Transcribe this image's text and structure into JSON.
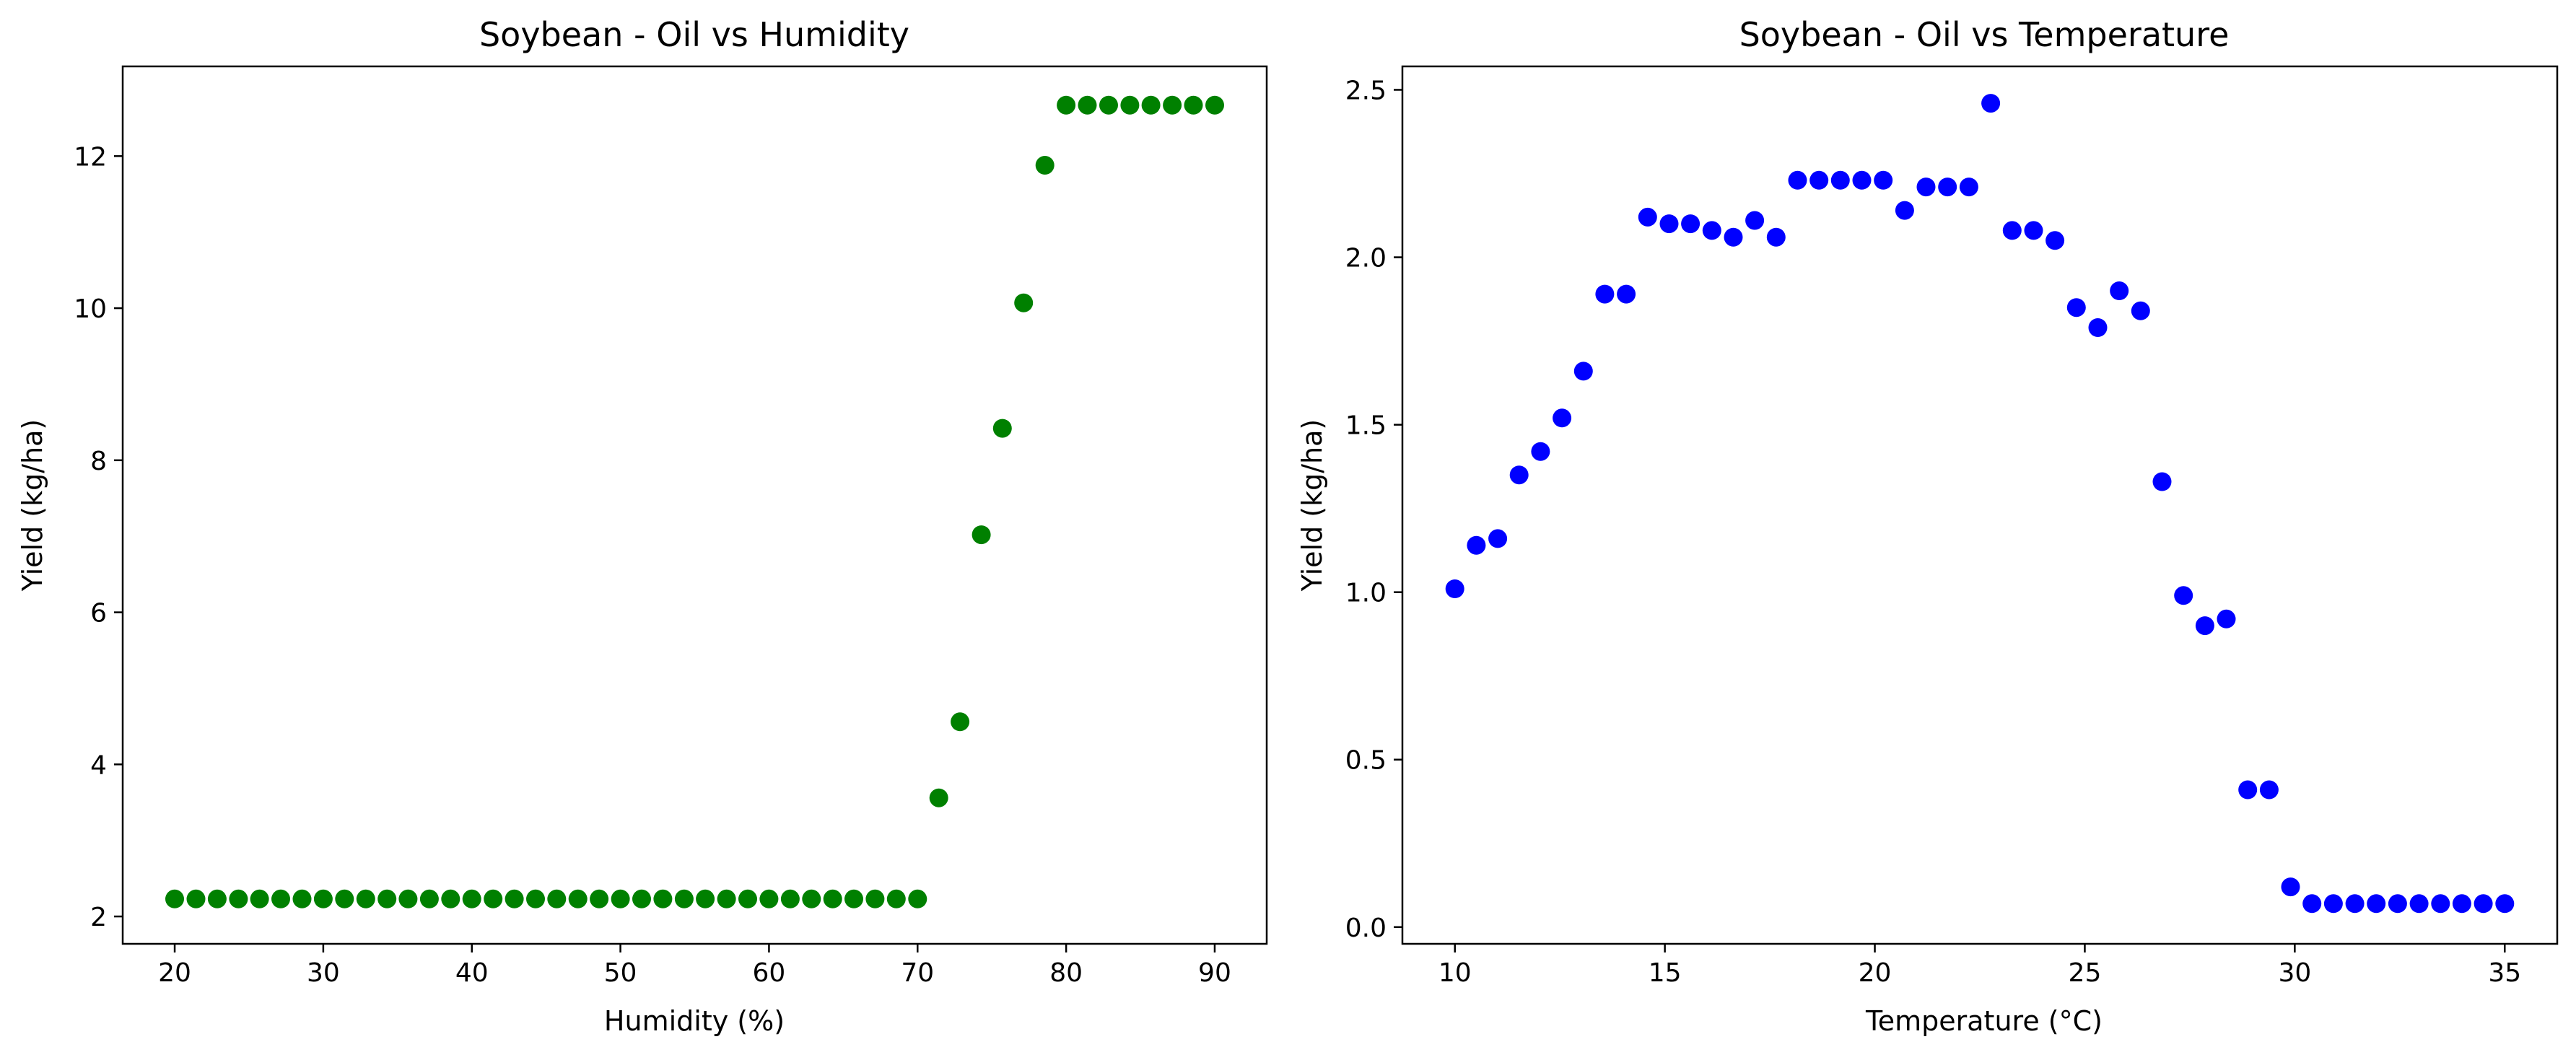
{
  "chart_data": [
    {
      "type": "scatter",
      "title": "Soybean - Oil vs Humidity",
      "xlabel": "Humidity (%)",
      "ylabel": "Yield (kg/ha)",
      "xlim": [
        16.5,
        93.5
      ],
      "ylim": [
        1.64,
        13.18
      ],
      "xticks": [
        20,
        30,
        40,
        50,
        60,
        70,
        80,
        90
      ],
      "yticks": [
        2,
        4,
        6,
        8,
        10,
        12
      ],
      "color": "#008000",
      "grid": false,
      "series": [
        {
          "x": [
            20.0,
            21.43,
            22.86,
            24.29,
            25.71,
            27.14,
            28.57,
            30.0,
            31.43,
            32.86,
            34.29,
            35.71,
            37.14,
            38.57,
            40.0,
            41.43,
            42.86,
            44.29,
            45.71,
            47.14,
            48.57,
            50.0,
            51.43,
            52.86,
            54.29,
            55.71,
            57.14,
            58.57,
            60.0,
            61.43,
            62.86,
            64.29,
            65.71,
            67.14,
            68.57,
            70.0,
            71.43,
            72.86,
            74.29,
            75.71,
            77.14,
            78.57,
            80.0,
            81.43,
            82.86,
            84.29,
            85.71,
            87.14,
            88.57,
            90.0
          ],
          "y": [
            2.23,
            2.23,
            2.23,
            2.23,
            2.23,
            2.23,
            2.23,
            2.23,
            2.23,
            2.23,
            2.23,
            2.23,
            2.23,
            2.23,
            2.23,
            2.23,
            2.23,
            2.23,
            2.23,
            2.23,
            2.23,
            2.23,
            2.23,
            2.23,
            2.23,
            2.23,
            2.23,
            2.23,
            2.23,
            2.23,
            2.23,
            2.23,
            2.23,
            2.23,
            2.23,
            2.23,
            3.56,
            4.56,
            7.02,
            8.42,
            10.07,
            11.88,
            12.67,
            12.67,
            12.67,
            12.67,
            12.67,
            12.67,
            12.67,
            12.67
          ]
        }
      ]
    },
    {
      "type": "scatter",
      "title": "Soybean - Oil vs Temperature",
      "xlabel": "Temperature (°C)",
      "ylabel": "Yield (kg/ha)",
      "xlim": [
        8.75,
        36.25
      ],
      "ylim": [
        -0.05,
        2.57
      ],
      "xticks": [
        10,
        15,
        20,
        25,
        30,
        35
      ],
      "yticks": [
        "0.0",
        "0.5",
        "1.0",
        "1.5",
        "2.0",
        "2.5"
      ],
      "color": "#0000ff",
      "grid": false,
      "series": [
        {
          "x": [
            10.0,
            10.51,
            11.02,
            11.53,
            12.04,
            12.55,
            13.06,
            13.57,
            14.08,
            14.59,
            15.1,
            15.61,
            16.12,
            16.63,
            17.14,
            17.65,
            18.16,
            18.67,
            19.18,
            19.69,
            20.2,
            20.71,
            21.22,
            21.73,
            22.24,
            22.76,
            23.27,
            23.78,
            24.29,
            24.8,
            25.31,
            25.82,
            26.33,
            26.84,
            27.35,
            27.86,
            28.37,
            28.88,
            29.39,
            29.9,
            30.41,
            30.92,
            31.43,
            31.94,
            32.45,
            32.96,
            33.47,
            33.98,
            34.49,
            35.0
          ],
          "y": [
            1.01,
            1.14,
            1.16,
            1.35,
            1.42,
            1.52,
            1.66,
            1.89,
            1.89,
            2.12,
            2.1,
            2.1,
            2.08,
            2.06,
            2.11,
            2.06,
            2.23,
            2.23,
            2.23,
            2.23,
            2.23,
            2.14,
            2.21,
            2.21,
            2.21,
            2.46,
            2.08,
            2.08,
            2.05,
            1.85,
            1.79,
            1.9,
            1.84,
            1.33,
            0.99,
            0.9,
            0.92,
            0.41,
            0.41,
            0.12,
            0.07,
            0.07,
            0.07,
            0.07,
            0.07,
            0.07,
            0.07,
            0.07,
            0.07,
            0.07
          ]
        }
      ]
    }
  ]
}
